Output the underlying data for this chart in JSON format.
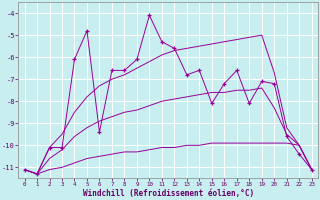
{
  "xlabel": "Windchill (Refroidissement éolien,°C)",
  "background_color": "#c8eef0",
  "grid_color": "#ffffff",
  "line_color": "#990099",
  "hours": [
    0,
    1,
    2,
    3,
    4,
    5,
    6,
    7,
    8,
    9,
    10,
    11,
    12,
    13,
    14,
    15,
    16,
    17,
    18,
    19,
    20,
    21,
    22,
    23
  ],
  "windchill": [
    -11.1,
    -11.3,
    -10.1,
    -10.1,
    -6.1,
    -4.8,
    -9.4,
    -6.6,
    -6.6,
    -6.1,
    -4.1,
    -5.3,
    -5.6,
    -6.8,
    -6.6,
    -8.1,
    -7.2,
    -6.6,
    -8.1,
    -7.1,
    -7.2,
    -9.6,
    -10.4,
    -11.1
  ],
  "min_line": [
    -11.1,
    -11.3,
    -11.1,
    -11.0,
    -10.8,
    -10.6,
    -10.5,
    -10.4,
    -10.3,
    -10.3,
    -10.2,
    -10.1,
    -10.1,
    -10.0,
    -10.0,
    -9.9,
    -9.9,
    -9.9,
    -9.9,
    -9.9,
    -9.9,
    -9.9,
    -10.0,
    -11.1
  ],
  "max_line": [
    -11.1,
    -11.3,
    -10.1,
    -9.5,
    -8.5,
    -7.8,
    -7.3,
    -7.0,
    -6.8,
    -6.5,
    -6.2,
    -5.9,
    -5.7,
    -5.6,
    -5.5,
    -5.4,
    -5.3,
    -5.2,
    -5.1,
    -5.0,
    -6.7,
    -9.2,
    -10.0,
    -11.1
  ],
  "avg_line": [
    -11.1,
    -11.3,
    -10.6,
    -10.2,
    -9.6,
    -9.2,
    -8.9,
    -8.7,
    -8.5,
    -8.4,
    -8.2,
    -8.0,
    -7.9,
    -7.8,
    -7.7,
    -7.6,
    -7.6,
    -7.5,
    -7.5,
    -7.4,
    -8.3,
    -9.5,
    -10.0,
    -11.1
  ],
  "ylim": [
    -11.5,
    -3.5
  ],
  "yticks": [
    -11,
    -10,
    -9,
    -8,
    -7,
    -6,
    -5,
    -4
  ],
  "xlim": [
    -0.5,
    23.5
  ]
}
